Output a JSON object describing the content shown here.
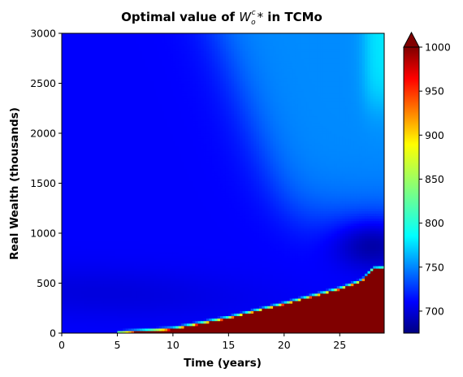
{
  "chart_data": {
    "type": "heatmap",
    "title": "Optimal value of W_o^c * in TCMo",
    "title_parts": {
      "prefix": "Optimal value of ",
      "symbol": "W",
      "sub": "o",
      "sup": "c",
      "star": "*",
      "suffix": "  in TCMo"
    },
    "xlabel": "Time (years)",
    "ylabel": "Real Wealth (thousands)",
    "xlim": [
      0,
      29
    ],
    "ylim": [
      0,
      3000
    ],
    "x_ticks": [
      0,
      5,
      10,
      15,
      20,
      25
    ],
    "y_ticks": [
      0,
      500,
      1000,
      1500,
      2000,
      2500,
      3000
    ],
    "colorbar": {
      "min": 675,
      "max": 1000,
      "ticks": [
        700,
        750,
        800,
        850,
        900,
        950,
        1000
      ],
      "extend": "max",
      "colormap": "jet"
    },
    "regions": {
      "boundary_wealth_by_year": {
        "years": [
          5,
          10,
          15,
          20,
          25,
          27,
          28,
          29
        ],
        "wealth": [
          0,
          40,
          150,
          290,
          440,
          520,
          640,
          650
        ]
      },
      "below_boundary_value": 1000,
      "left_low_band_value": 705,
      "background_value": 715,
      "upper_right_value": 760,
      "far_right_high_value": 790,
      "dark_pocket_value": 680
    }
  }
}
